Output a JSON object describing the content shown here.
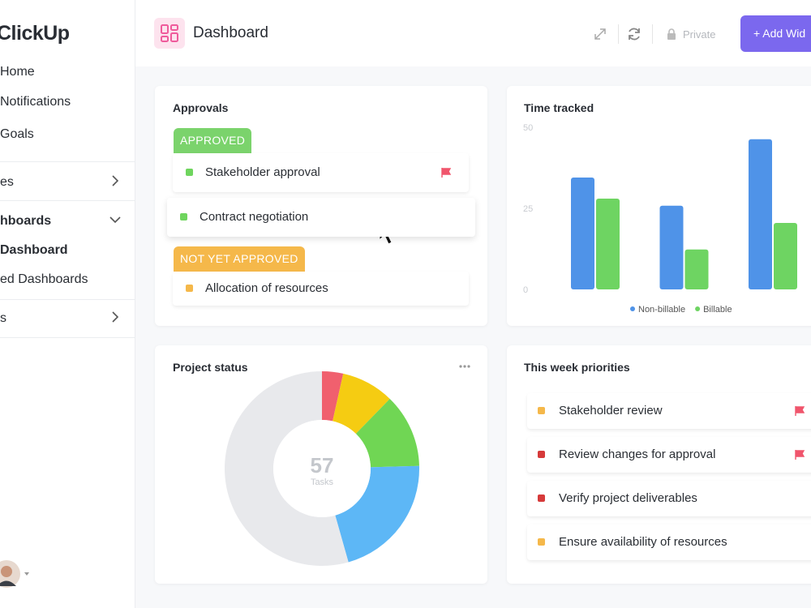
{
  "sidebar": {
    "logo": "ClickUp",
    "nav": [
      "Home",
      "Notifications",
      "Goals",
      "es",
      "hboards",
      "Dashboard",
      "ed Dashboards",
      "s"
    ]
  },
  "header": {
    "title": "Dashboard",
    "privacy": "Private",
    "button": "+ Add Wid"
  },
  "approvals": {
    "title": "Approvals",
    "groups": [
      {
        "status": "APPROVED",
        "color": "#7bd36c",
        "items": [
          {
            "name": "Stakeholder approval",
            "color": "#6fd55e",
            "flagged": true
          },
          {
            "name": "Contract negotiation",
            "color": "#6fd55e",
            "flagged": false
          }
        ]
      },
      {
        "status": "NOT YET APPROVED",
        "color": "#f5b84a",
        "items": [
          {
            "name": "Allocation of resources",
            "color": "#f5b84a",
            "flagged": false
          }
        ]
      }
    ]
  },
  "chart_data": [
    {
      "type": "bar",
      "title": "Time tracked",
      "categories": [
        null,
        null,
        null
      ],
      "series": [
        {
          "name": "Non-billable",
          "color": "#4f93e8",
          "values": [
            34.5,
            25.8,
            46.3
          ]
        },
        {
          "name": "Billable",
          "color": "#6ed462",
          "values": [
            28,
            12.3,
            20.5
          ]
        }
      ],
      "ylim": [
        0,
        50
      ],
      "yticks": [
        0,
        25,
        50
      ],
      "grid": false,
      "legend": "bottom"
    },
    {
      "type": "pie",
      "title": "Project status",
      "values": [
        2,
        5,
        7,
        12,
        31
      ],
      "colors": [
        "#f0606e",
        "#f5cc12",
        "#70d654",
        "#5db7f6",
        "#e8e9ec"
      ],
      "center_value": 57,
      "center_label": "Tasks"
    }
  ],
  "priorities": {
    "title": "This week priorities",
    "items": [
      {
        "name": "Stakeholder review",
        "color": "#f5b84a",
        "flagged": true
      },
      {
        "name": "Review changes for approval",
        "color": "#d63a3a",
        "flagged": true
      },
      {
        "name": "Verify project deliverables",
        "color": "#d63a3a",
        "flagged": false
      },
      {
        "name": "Ensure availability of resources",
        "color": "#f5b84a",
        "flagged": false
      }
    ]
  }
}
